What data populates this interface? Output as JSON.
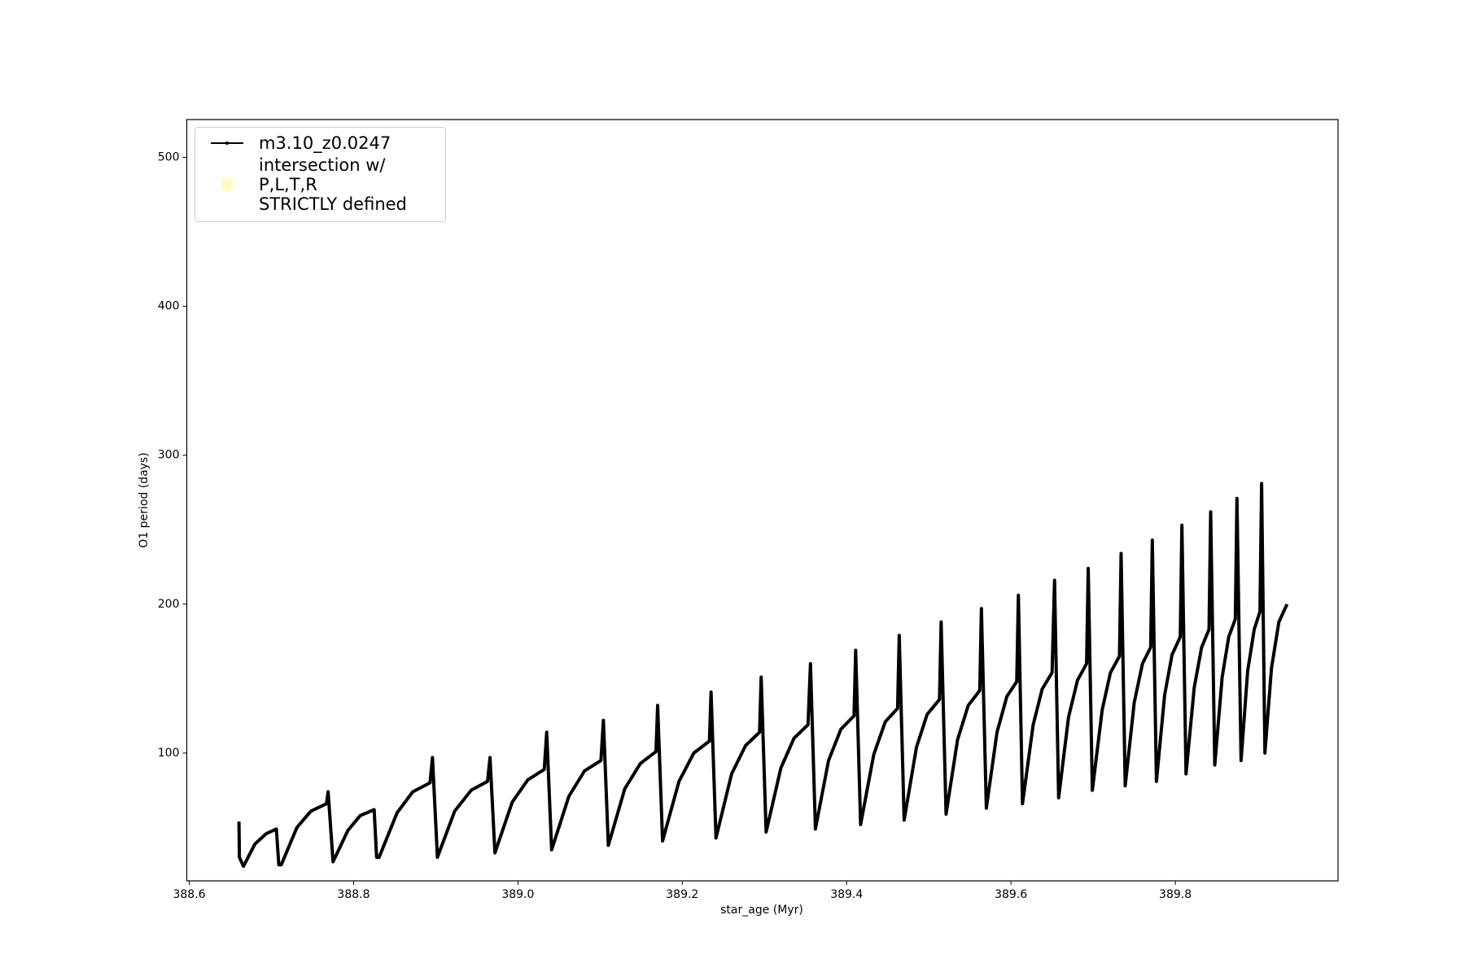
{
  "chart_data": {
    "type": "line",
    "xlabel": "star_age (Myr)",
    "ylabel": "O1 period (days)",
    "xlim": [
      388.597,
      389.998
    ],
    "ylim": [
      14.2,
      525.4
    ],
    "xticks": [
      388.6,
      388.8,
      {
        "value": 389,
        "label": "389.0"
      },
      389.2,
      389.4,
      389.6,
      389.8
    ],
    "yticks": [
      100,
      200,
      300,
      400,
      500
    ],
    "legend": "upper left",
    "series": [
      {
        "name": "m3.10_z0.0247",
        "color": "#000000",
        "x": [
          388.6605,
          388.661,
          388.666,
          388.68,
          388.694,
          388.706,
          388.709,
          388.712,
          388.731,
          388.748,
          388.767,
          388.769,
          388.775,
          388.793,
          388.808,
          388.825,
          388.828,
          388.831,
          388.853,
          388.872,
          388.893,
          388.896,
          388.902,
          388.923,
          388.943,
          388.963,
          388.966,
          388.972,
          388.993,
          389.012,
          389.032,
          389.035,
          389.041,
          389.062,
          389.081,
          389.101,
          389.104,
          389.11,
          389.13,
          389.149,
          389.168,
          389.17,
          389.176,
          389.196,
          389.214,
          389.233,
          389.235,
          389.241,
          389.26,
          389.277,
          389.294,
          389.296,
          389.302,
          389.32,
          389.336,
          389.353,
          389.356,
          389.362,
          389.378,
          389.393,
          389.409,
          389.411,
          389.417,
          389.433,
          389.447,
          389.462,
          389.464,
          389.47,
          389.485,
          389.498,
          389.513,
          389.515,
          389.521,
          389.535,
          389.548,
          389.562,
          389.564,
          389.57,
          389.583,
          389.595,
          389.607,
          389.609,
          389.614,
          389.627,
          389.638,
          389.65,
          389.653,
          389.658,
          389.67,
          389.681,
          389.692,
          389.694,
          389.699,
          389.711,
          389.721,
          389.732,
          389.734,
          389.739,
          389.75,
          389.76,
          389.77,
          389.772,
          389.777,
          389.787,
          389.796,
          389.806,
          389.808,
          389.813,
          389.823,
          389.832,
          389.841,
          389.843,
          389.848,
          389.857,
          389.865,
          389.873,
          389.875,
          389.88,
          389.888,
          389.896,
          389.903,
          389.905,
          389.909,
          389.917,
          389.926,
          389.936
        ],
        "y": [
          54,
          30,
          24,
          39,
          46,
          49,
          25,
          25,
          50,
          61,
          66,
          74,
          27,
          48,
          58,
          62,
          30,
          30,
          60,
          74,
          80,
          97,
          30,
          61,
          75,
          81,
          97,
          33,
          67,
          82,
          89,
          114,
          35,
          71,
          88,
          95,
          122,
          38,
          76,
          93,
          101,
          132,
          41,
          81,
          100,
          108,
          141,
          43,
          86,
          105,
          114,
          151,
          47,
          90,
          110,
          119,
          160,
          49,
          95,
          116,
          125,
          169,
          52,
          99,
          121,
          130,
          179,
          55,
          104,
          126,
          136,
          188,
          59,
          109,
          132,
          142,
          197,
          63,
          114,
          138,
          148,
          206,
          66,
          119,
          143,
          154,
          216,
          70,
          124,
          149,
          160,
          224,
          75,
          129,
          154,
          165,
          234,
          78,
          134,
          160,
          171,
          243,
          81,
          139,
          166,
          178,
          253,
          86,
          144,
          171,
          183,
          262,
          92,
          151,
          178,
          190,
          271,
          95,
          155,
          183,
          195,
          281,
          100,
          157,
          188,
          200
        ]
      },
      {
        "name": "intersection w/ P,L,T,R\nSTRICTLY defined",
        "color": "#fffcbf",
        "x": [],
        "y": []
      }
    ]
  }
}
